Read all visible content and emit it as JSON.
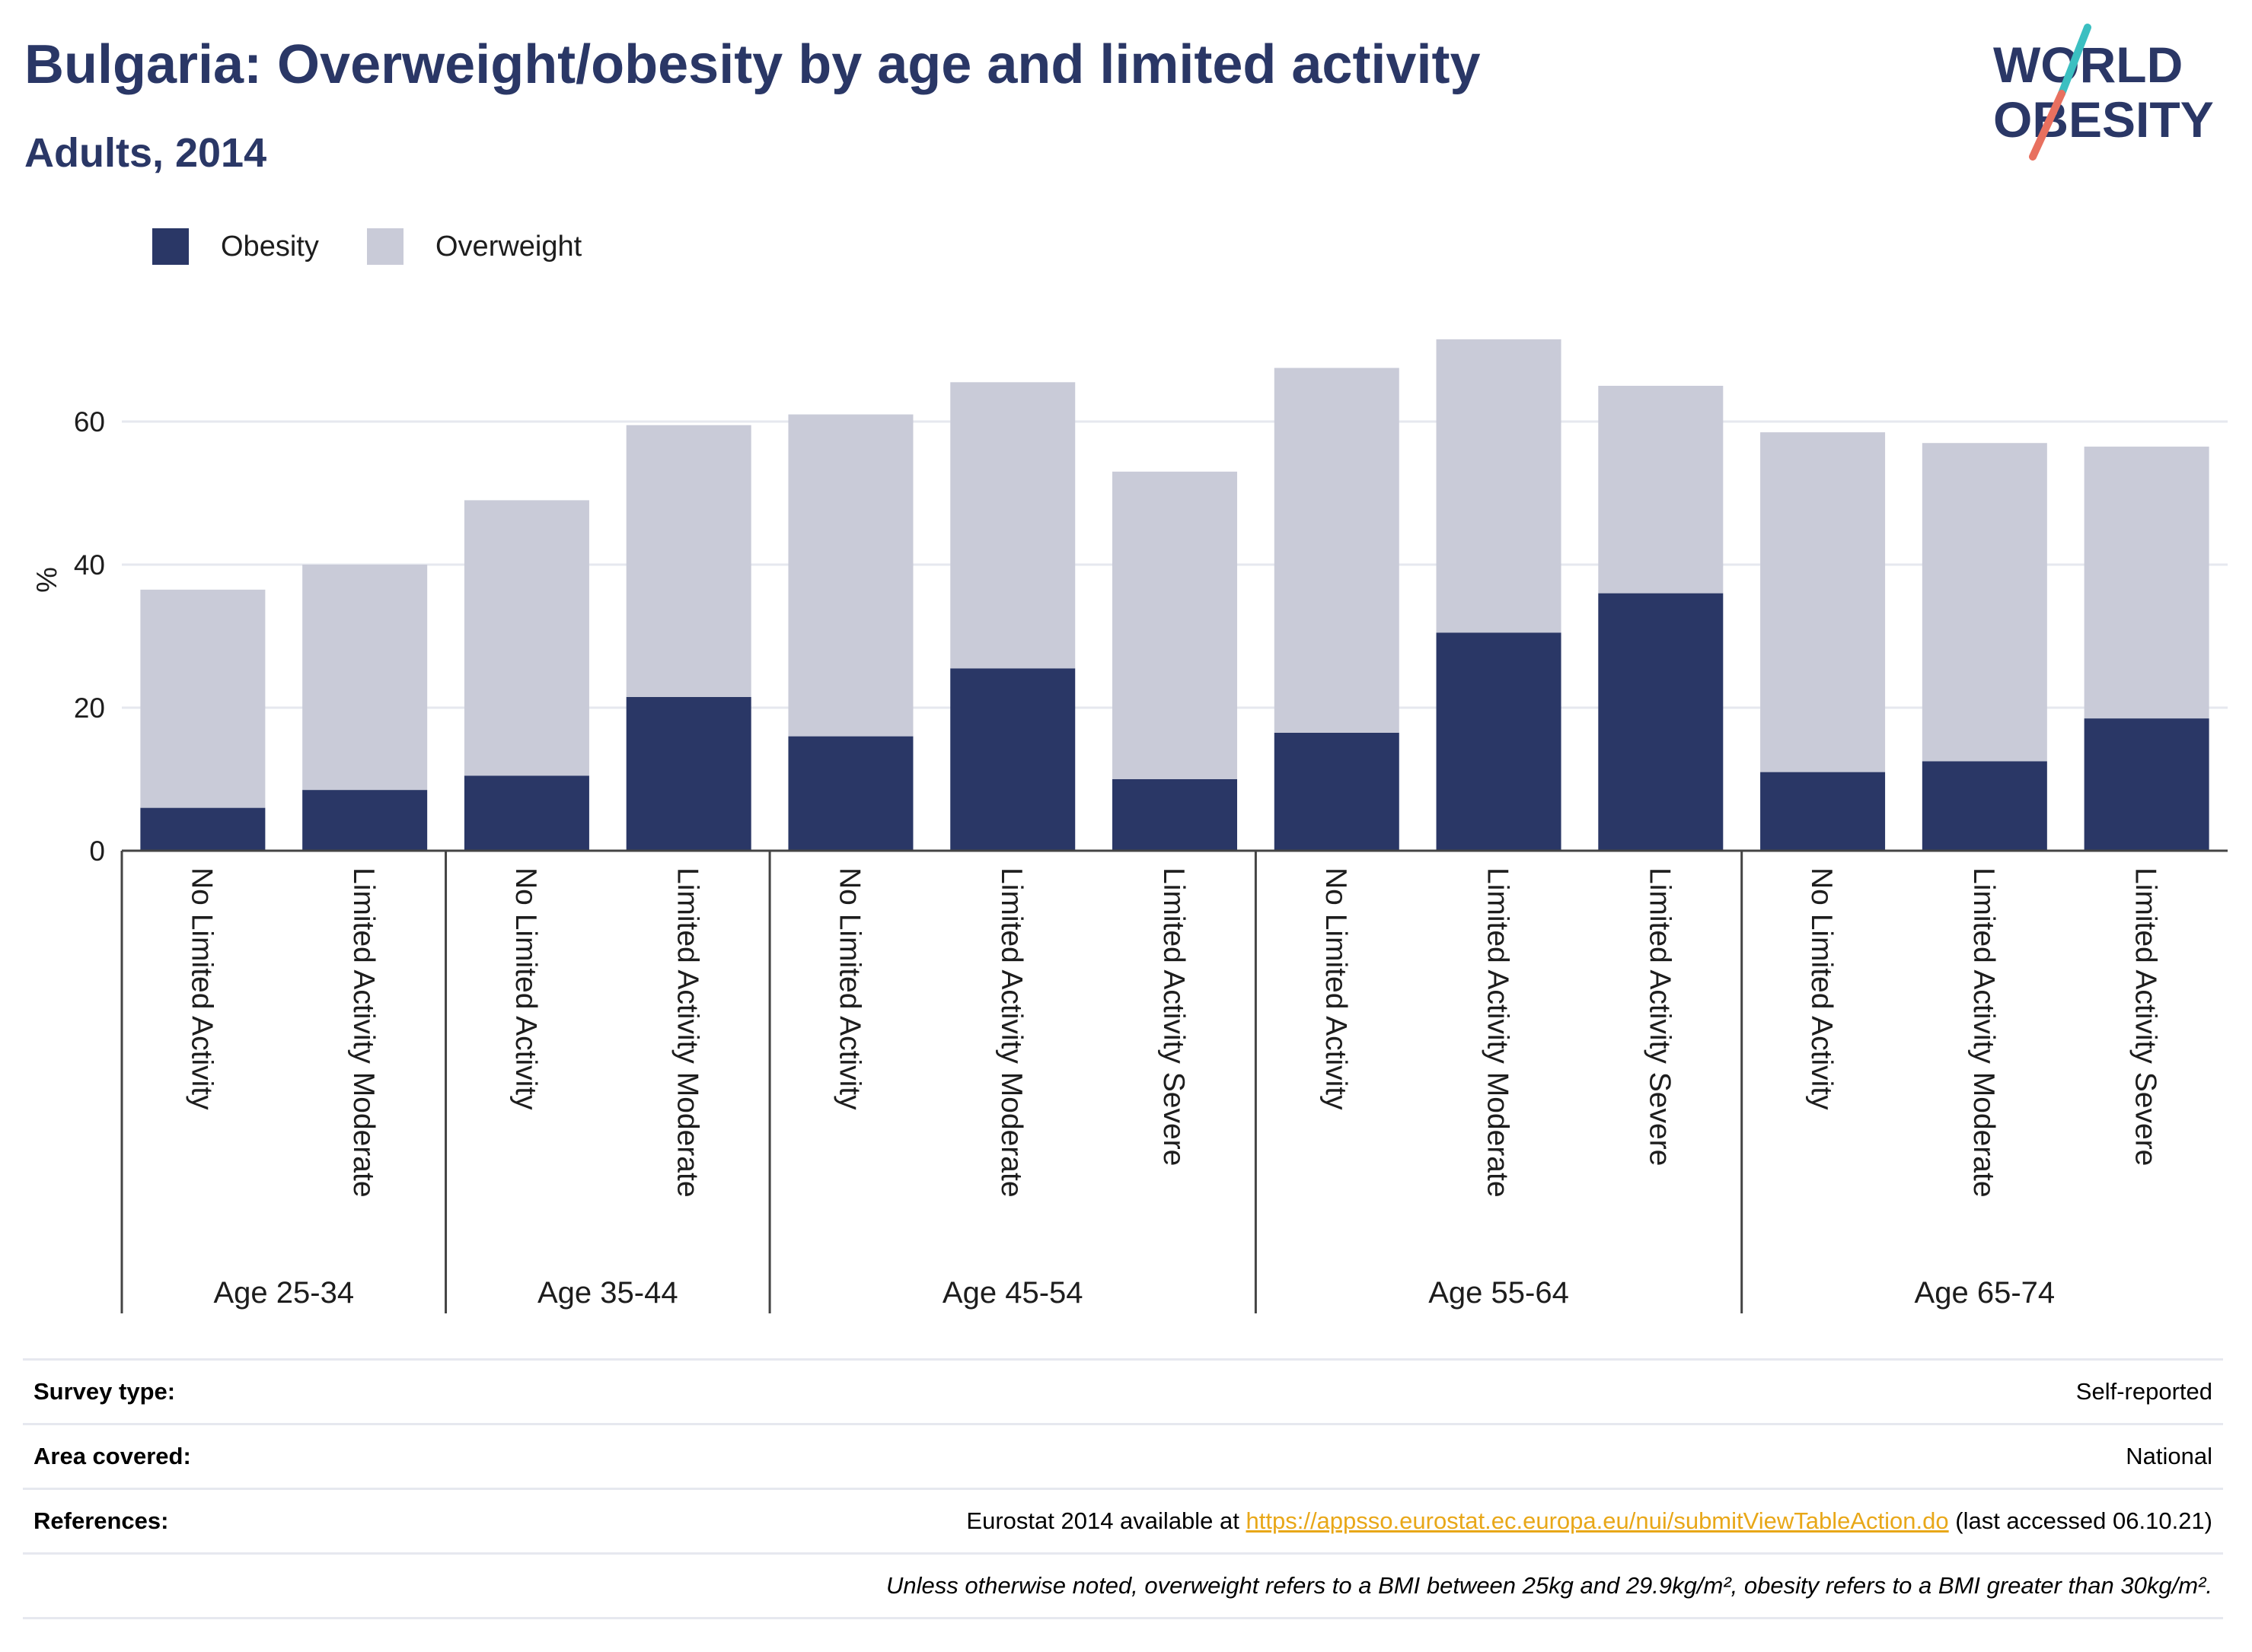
{
  "header": {
    "title": "Bulgaria: Overweight/obesity by age and limited activity",
    "subtitle": "Adults, 2014"
  },
  "logo": {
    "line1": "WORLD",
    "line2": "OBESITY",
    "colors": {
      "text": "#2a3766",
      "slash_top": "#3bbfc1",
      "slash_bottom": "#e8705f"
    }
  },
  "legend": [
    {
      "label": "Obesity",
      "color": "#2a3766"
    },
    {
      "label": "Overweight",
      "color": "#c9cbd8"
    }
  ],
  "chart_data": {
    "type": "bar",
    "stacked": true,
    "ylabel": "%",
    "ylim": [
      0,
      74
    ],
    "yticks": [
      0,
      20,
      40,
      60
    ],
    "grid": true,
    "legend_position": "top-left",
    "groups": [
      {
        "label": "Age 25-34",
        "categories": [
          "No Limited Activity",
          "Limited Activity Moderate"
        ]
      },
      {
        "label": "Age 35-44",
        "categories": [
          "No Limited Activity",
          "Limited Activity Moderate"
        ]
      },
      {
        "label": "Age 45-54",
        "categories": [
          "No Limited Activity",
          "Limited Activity Moderate",
          "Limited Activity Severe"
        ]
      },
      {
        "label": "Age 55-64",
        "categories": [
          "No Limited Activity",
          "Limited Activity Moderate",
          "Limited Activity Severe"
        ]
      },
      {
        "label": "Age 65-74",
        "categories": [
          "No Limited Activity",
          "Limited Activity Moderate",
          "Limited Activity Severe"
        ]
      }
    ],
    "series": [
      {
        "name": "Obesity",
        "color": "#2a3766",
        "values": [
          6.0,
          8.5,
          10.5,
          21.5,
          16.0,
          25.5,
          10.0,
          16.5,
          30.5,
          36.0,
          11.0,
          12.5,
          18.5
        ]
      },
      {
        "name": "Overweight",
        "color": "#c9cbd8",
        "values": [
          30.5,
          31.5,
          38.5,
          38.0,
          45.0,
          40.0,
          43.0,
          51.0,
          41.0,
          29.0,
          47.5,
          44.5,
          38.0
        ]
      }
    ]
  },
  "info": {
    "survey_type": {
      "label": "Survey type:",
      "value": "Self-reported"
    },
    "area_covered": {
      "label": "Area covered:",
      "value": "National"
    },
    "references": {
      "label": "References:",
      "prefix": "Eurostat 2014 available at ",
      "link": "https://appsso.eurostat.ec.europa.eu/nui/submitViewTableAction.do",
      "suffix": " (last accessed 06.10.21)"
    },
    "note": "Unless otherwise noted, overweight refers to a BMI between 25kg and 29.9kg/m², obesity refers to a BMI greater than 30kg/m²."
  }
}
